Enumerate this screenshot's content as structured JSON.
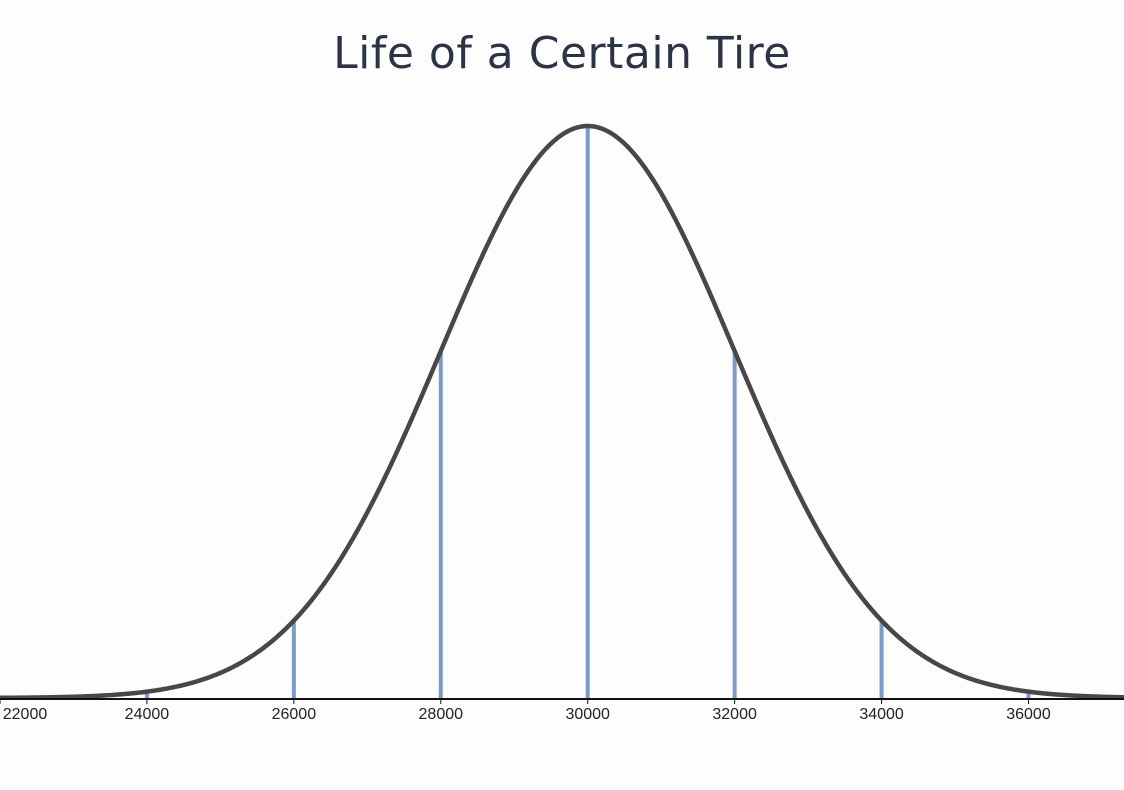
{
  "chart_data": {
    "type": "line",
    "title": "Life of a Certain Tire",
    "xlabel": "",
    "ylabel": "",
    "distribution": {
      "kind": "normal",
      "mean": 30000,
      "sd": 2000
    },
    "xlim": [
      22000,
      37300
    ],
    "x_ticks": [
      22000,
      24000,
      26000,
      28000,
      30000,
      32000,
      34000,
      36000
    ],
    "tick_labels": [
      "22000",
      "24000",
      "26000",
      "28000",
      "30000",
      "32000",
      "34000",
      "36000"
    ],
    "reference_lines": [
      24000,
      26000,
      28000,
      30000,
      32000,
      34000,
      36000
    ],
    "grid": false,
    "y_axis_visible": false,
    "colors": {
      "curve": "#474747",
      "reference_lines": "#7b9bc8",
      "axis": "#111111",
      "title": "#2b3447"
    }
  }
}
